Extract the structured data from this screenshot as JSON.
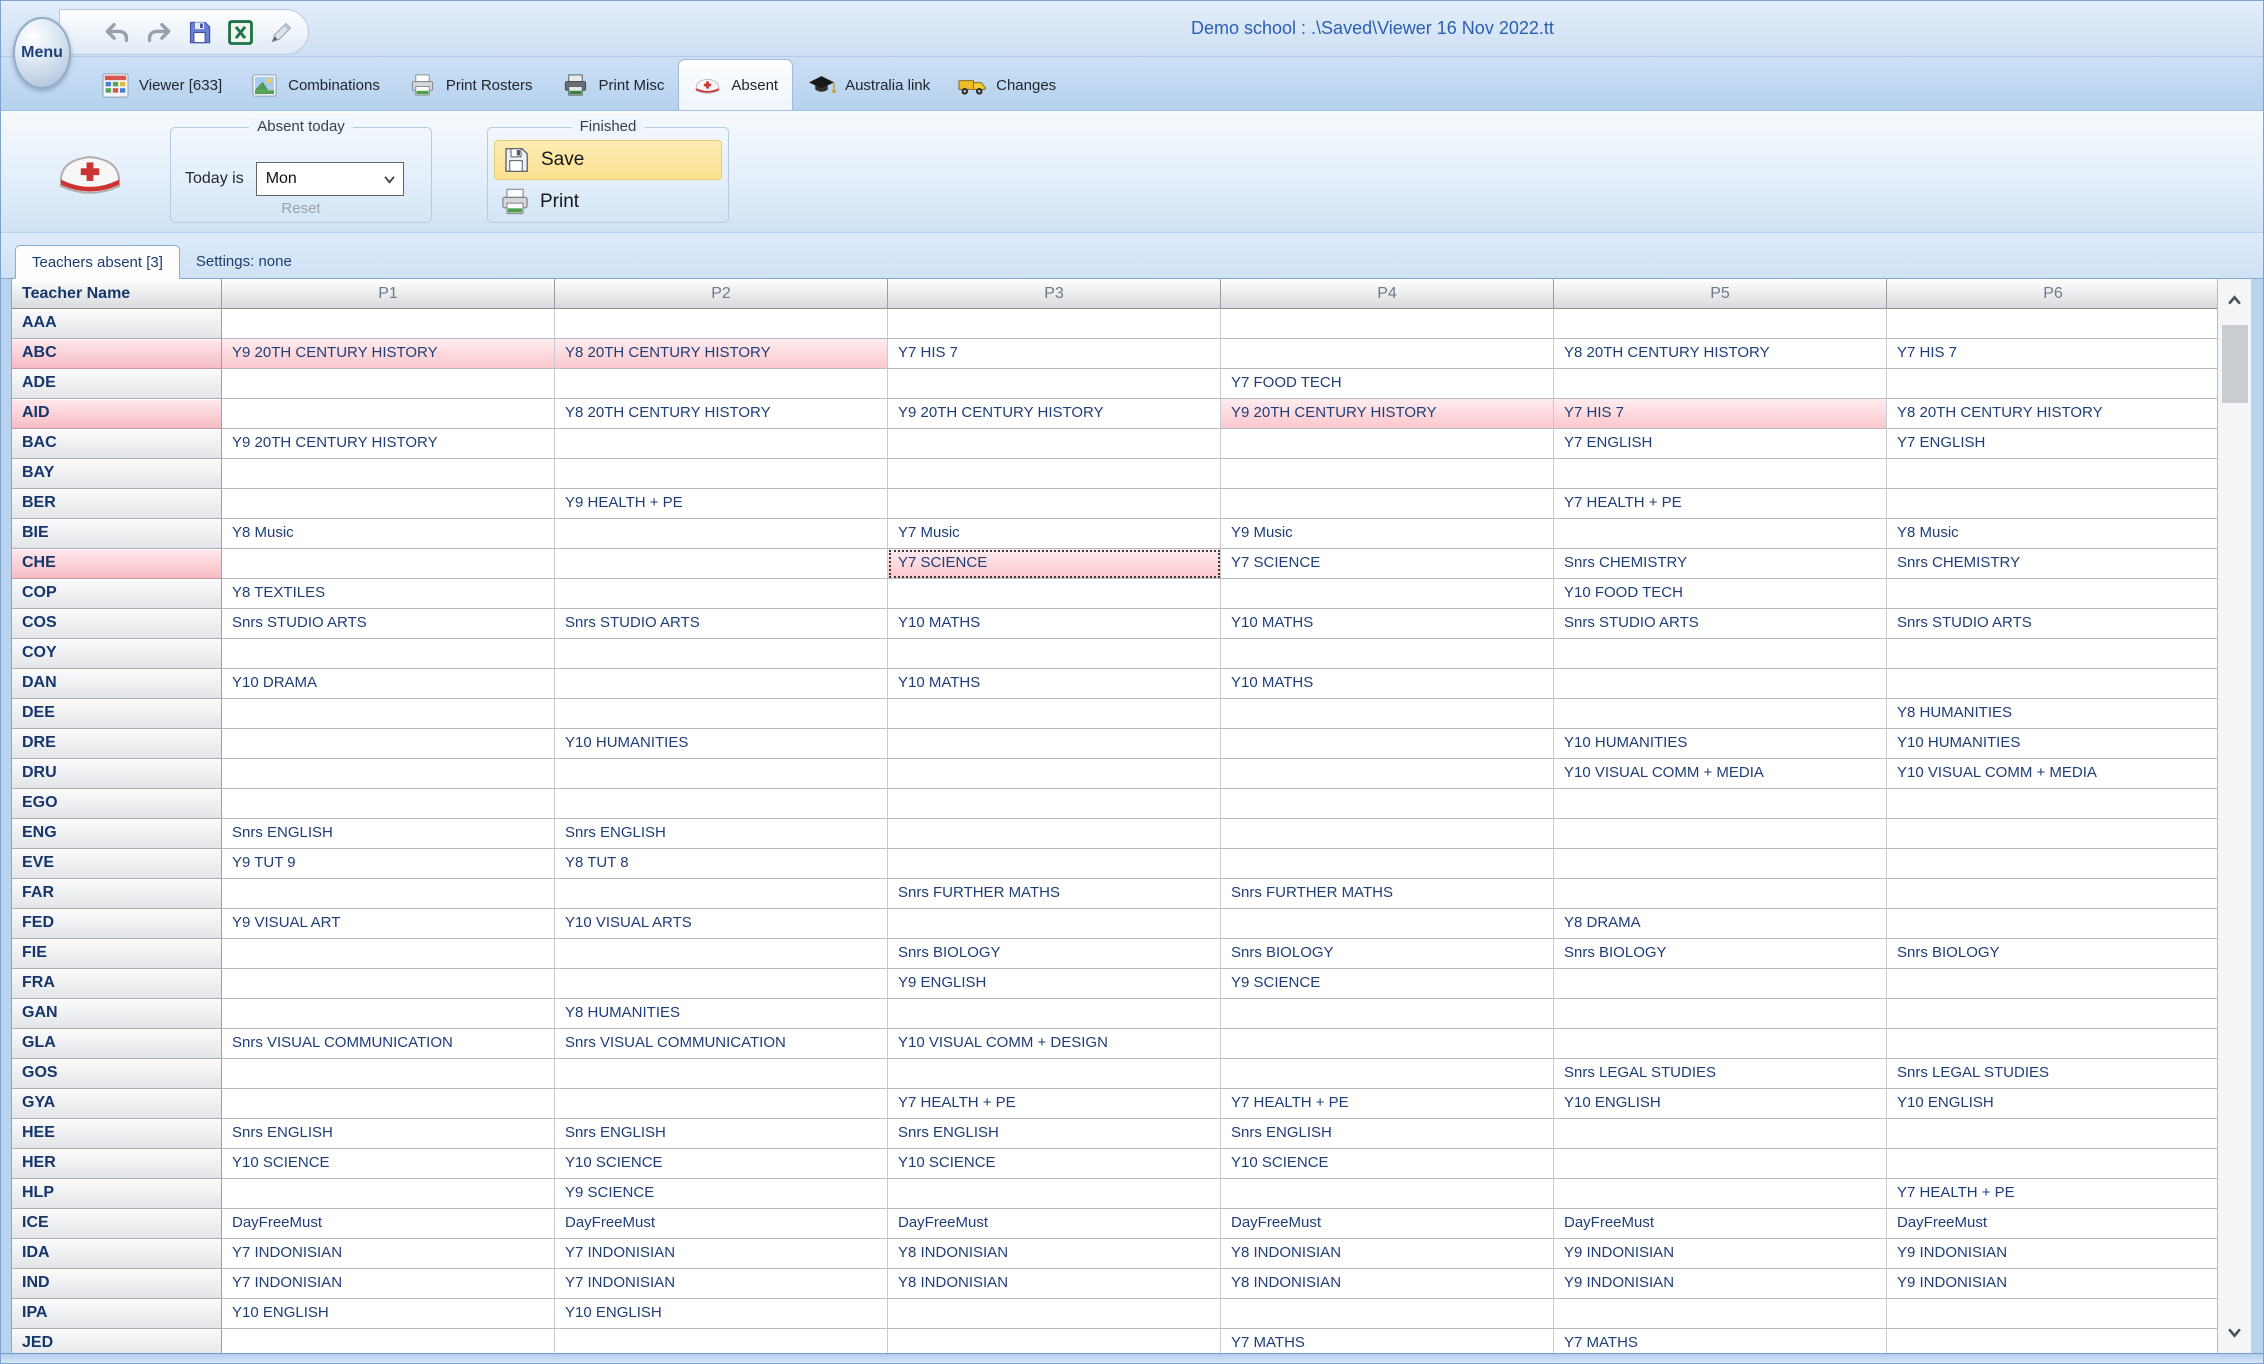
{
  "window": {
    "title": "Demo school : .\\Saved\\Viewer 16 Nov 2022.tt"
  },
  "menu": {
    "label": "Menu"
  },
  "tabs": [
    {
      "label": "Viewer [633]",
      "icon": "viewer",
      "selected": false
    },
    {
      "label": "Combinations",
      "icon": "combinations",
      "selected": false
    },
    {
      "label": "Print Rosters",
      "icon": "printer-light",
      "selected": false
    },
    {
      "label": "Print Misc",
      "icon": "printer-dark",
      "selected": false
    },
    {
      "label": "Absent",
      "icon": "nurse-cap",
      "selected": true
    },
    {
      "label": "Australia link",
      "icon": "australia-link",
      "selected": false
    },
    {
      "label": "Changes",
      "icon": "changes",
      "selected": false
    }
  ],
  "ribbon": {
    "absent_today": {
      "legend": "Absent today",
      "today_label": "Today is",
      "day_value": "Mon",
      "reset_label": "Reset"
    },
    "finished": {
      "legend": "Finished",
      "save_label": "Save",
      "print_label": "Print"
    }
  },
  "subtabs": [
    {
      "label": "Teachers absent [3]",
      "selected": true
    },
    {
      "label": "Settings: none",
      "selected": false
    }
  ],
  "table": {
    "columns": [
      "Teacher Name",
      "P1",
      "P2",
      "P3",
      "P4",
      "P5",
      "P6"
    ],
    "rows": [
      {
        "name": "AAA",
        "absent": false,
        "cells": [
          "",
          "",
          "",
          "",
          "",
          ""
        ]
      },
      {
        "name": "ABC",
        "absent": true,
        "cells": [
          "Y9 20TH CENTURY HISTORY",
          "Y8 20TH CENTURY HISTORY",
          "Y7 HIS 7",
          "",
          "Y8 20TH CENTURY HISTORY",
          "Y7 HIS 7"
        ],
        "pink": [
          0,
          1
        ]
      },
      {
        "name": "ADE",
        "absent": false,
        "cells": [
          "",
          "",
          "",
          "Y7 FOOD TECH",
          "",
          ""
        ]
      },
      {
        "name": "AID",
        "absent": true,
        "cells": [
          "",
          "Y8 20TH CENTURY HISTORY",
          "Y9 20TH CENTURY HISTORY",
          "Y9 20TH CENTURY HISTORY",
          "Y7 HIS 7",
          "Y8 20TH CENTURY HISTORY"
        ],
        "pink": [
          3,
          4
        ]
      },
      {
        "name": "BAC",
        "absent": false,
        "cells": [
          "Y9 20TH CENTURY HISTORY",
          "",
          "",
          "",
          "Y7 ENGLISH",
          "Y7 ENGLISH"
        ]
      },
      {
        "name": "BAY",
        "absent": false,
        "cells": [
          "",
          "",
          "",
          "",
          "",
          ""
        ]
      },
      {
        "name": "BER",
        "absent": false,
        "cells": [
          "",
          "Y9 HEALTH + PE",
          "",
          "",
          "Y7 HEALTH + PE",
          ""
        ]
      },
      {
        "name": "BIE",
        "absent": false,
        "cells": [
          "Y8 Music",
          "",
          "Y7 Music",
          "Y9 Music",
          "",
          "Y8 Music"
        ]
      },
      {
        "name": "CHE",
        "absent": true,
        "cells": [
          "",
          "",
          "Y7 SCIENCE",
          "Y7 SCIENCE",
          "Snrs CHEMISTRY",
          "Snrs CHEMISTRY"
        ],
        "pink": [
          2
        ],
        "selected": 2
      },
      {
        "name": "COP",
        "absent": false,
        "cells": [
          "Y8 TEXTILES",
          "",
          "",
          "",
          "Y10 FOOD TECH",
          ""
        ]
      },
      {
        "name": "COS",
        "absent": false,
        "cells": [
          "Snrs STUDIO ARTS",
          "Snrs STUDIO ARTS",
          "Y10 MATHS",
          "Y10 MATHS",
          "Snrs STUDIO ARTS",
          "Snrs STUDIO ARTS"
        ]
      },
      {
        "name": "COY",
        "absent": false,
        "cells": [
          "",
          "",
          "",
          "",
          "",
          ""
        ]
      },
      {
        "name": "DAN",
        "absent": false,
        "cells": [
          "Y10 DRAMA",
          "",
          "Y10 MATHS",
          "Y10 MATHS",
          "",
          ""
        ]
      },
      {
        "name": "DEE",
        "absent": false,
        "cells": [
          "",
          "",
          "",
          "",
          "",
          "Y8 HUMANITIES"
        ]
      },
      {
        "name": "DRE",
        "absent": false,
        "cells": [
          "",
          "Y10 HUMANITIES",
          "",
          "",
          "Y10 HUMANITIES",
          "Y10 HUMANITIES"
        ]
      },
      {
        "name": "DRU",
        "absent": false,
        "cells": [
          "",
          "",
          "",
          "",
          "Y10 VISUAL COMM + MEDIA",
          "Y10 VISUAL COMM + MEDIA"
        ]
      },
      {
        "name": "EGO",
        "absent": false,
        "cells": [
          "",
          "",
          "",
          "",
          "",
          ""
        ]
      },
      {
        "name": "ENG",
        "absent": false,
        "cells": [
          "Snrs ENGLISH",
          "Snrs ENGLISH",
          "",
          "",
          "",
          ""
        ]
      },
      {
        "name": "EVE",
        "absent": false,
        "cells": [
          "Y9 TUT 9",
          "Y8 TUT 8",
          "",
          "",
          "",
          ""
        ]
      },
      {
        "name": "FAR",
        "absent": false,
        "cells": [
          "",
          "",
          "Snrs FURTHER MATHS",
          "Snrs FURTHER MATHS",
          "",
          ""
        ]
      },
      {
        "name": "FED",
        "absent": false,
        "cells": [
          "Y9 VISUAL ART",
          "Y10 VISUAL ARTS",
          "",
          "",
          "Y8 DRAMA",
          ""
        ]
      },
      {
        "name": "FIE",
        "absent": false,
        "cells": [
          "",
          "",
          "Snrs BIOLOGY",
          "Snrs BIOLOGY",
          "Snrs BIOLOGY",
          "Snrs BIOLOGY"
        ]
      },
      {
        "name": "FRA",
        "absent": false,
        "cells": [
          "",
          "",
          "Y9 ENGLISH",
          "Y9 SCIENCE",
          "",
          ""
        ]
      },
      {
        "name": "GAN",
        "absent": false,
        "cells": [
          "",
          "Y8 HUMANITIES",
          "",
          "",
          "",
          ""
        ]
      },
      {
        "name": "GLA",
        "absent": false,
        "cells": [
          "Snrs VISUAL COMMUNICATION",
          "Snrs VISUAL COMMUNICATION",
          "Y10 VISUAL COMM + DESIGN",
          "",
          "",
          ""
        ]
      },
      {
        "name": "GOS",
        "absent": false,
        "cells": [
          "",
          "",
          "",
          "",
          "Snrs LEGAL STUDIES",
          "Snrs LEGAL STUDIES"
        ]
      },
      {
        "name": "GYA",
        "absent": false,
        "cells": [
          "",
          "",
          "Y7 HEALTH + PE",
          "Y7 HEALTH + PE",
          "Y10 ENGLISH",
          "Y10 ENGLISH"
        ]
      },
      {
        "name": "HEE",
        "absent": false,
        "cells": [
          "Snrs ENGLISH",
          "Snrs ENGLISH",
          "Snrs ENGLISH",
          "Snrs ENGLISH",
          "",
          ""
        ]
      },
      {
        "name": "HER",
        "absent": false,
        "cells": [
          "Y10 SCIENCE",
          "Y10 SCIENCE",
          "Y10 SCIENCE",
          "Y10 SCIENCE",
          "",
          ""
        ]
      },
      {
        "name": "HLP",
        "absent": false,
        "cells": [
          "",
          "Y9 SCIENCE",
          "",
          "",
          "",
          "Y7 HEALTH + PE"
        ]
      },
      {
        "name": "ICE",
        "absent": false,
        "cells": [
          "DayFreeMust",
          "DayFreeMust",
          "DayFreeMust",
          "DayFreeMust",
          "DayFreeMust",
          "DayFreeMust"
        ]
      },
      {
        "name": "IDA",
        "absent": false,
        "cells": [
          "Y7 INDONISIAN",
          "Y7 INDONISIAN",
          "Y8 INDONISIAN",
          "Y8 INDONISIAN",
          "Y9 INDONISIAN",
          "Y9 INDONISIAN"
        ]
      },
      {
        "name": "IND",
        "absent": false,
        "cells": [
          "Y7 INDONISIAN",
          "Y7 INDONISIAN",
          "Y8 INDONISIAN",
          "Y8 INDONISIAN",
          "Y9 INDONISIAN",
          "Y9 INDONISIAN"
        ]
      },
      {
        "name": "IPA",
        "absent": false,
        "cells": [
          "Y10 ENGLISH",
          "Y10 ENGLISH",
          "",
          "",
          "",
          ""
        ]
      },
      {
        "name": "JED",
        "absent": false,
        "cells": [
          "",
          "",
          "",
          "Y7 MATHS",
          "Y7 MATHS",
          ""
        ]
      }
    ]
  }
}
